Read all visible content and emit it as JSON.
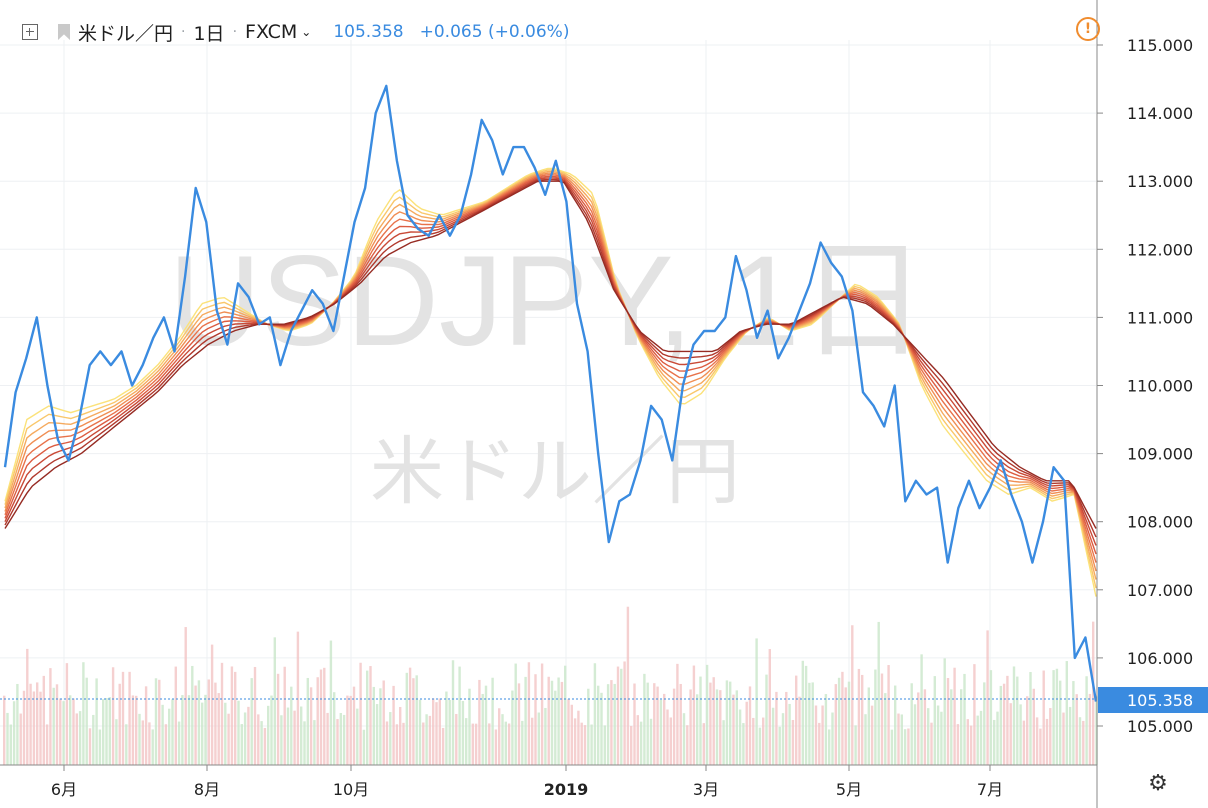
{
  "header": {
    "symbol": "米ドル／円",
    "interval": "1日",
    "source": "FXCM",
    "price": "105.358",
    "change": "+0.065 (+0.06%)"
  },
  "watermark": {
    "line1": "USDJPY, 1日",
    "line2": "米ドル／円"
  },
  "icons": {
    "expand": "expand-icon",
    "symbol_flag": "flag-icon",
    "dropdown": "chevron-down-icon",
    "alert": "alert-icon",
    "settings": "gear-icon"
  },
  "alert_symbol": "!",
  "colors": {
    "price_line": "#3a8be0",
    "ribbon": [
      "#fbe27a",
      "#f9c76a",
      "#f5aa5e",
      "#f08e53",
      "#e8724a",
      "#dc5c41",
      "#c94a37",
      "#b1392d",
      "#962b23"
    ],
    "volume_up": "#c9e6c9",
    "volume_down": "#f2c4c4",
    "current_price_tag": "#3a8be0"
  },
  "chart_data": {
    "type": "line",
    "title": "USDJPY, 1日",
    "x_ticks": [
      "6月",
      "8月",
      "10月",
      "2019",
      "3月",
      "5月",
      "7月"
    ],
    "y_ticks": [
      "115.000",
      "114.000",
      "113.000",
      "112.000",
      "111.000",
      "110.000",
      "109.000",
      "108.000",
      "107.000",
      "106.000",
      "105.000"
    ],
    "ylim": [
      104.6,
      115.35
    ],
    "current_price_label": "105.358",
    "series": [
      {
        "values": [
          108.8,
          109.9,
          110.4,
          111.0,
          110.0,
          109.2,
          108.9,
          109.5,
          110.3,
          110.5,
          110.3,
          110.5,
          110.0,
          110.3,
          110.7,
          111.0,
          110.5,
          111.6,
          112.9,
          112.4,
          111.1,
          110.6,
          111.5,
          111.3,
          110.9,
          111.0,
          110.3,
          110.8,
          111.1,
          111.4,
          111.2,
          110.8,
          111.6,
          112.4,
          112.9,
          114.0,
          114.4,
          113.3,
          112.5,
          112.3,
          112.2,
          112.5,
          112.2,
          112.5,
          113.1,
          113.9,
          113.6,
          113.1,
          113.5,
          113.5,
          113.2,
          112.8,
          113.3,
          112.7,
          111.2,
          110.5,
          109.0,
          107.7,
          108.3,
          108.4,
          108.9,
          109.7,
          109.5,
          108.9,
          110.0,
          110.6,
          110.8,
          110.8,
          111.0,
          111.9,
          111.4,
          110.7,
          111.1,
          110.4,
          110.7,
          111.1,
          111.5,
          112.1,
          111.8,
          111.6,
          111.1,
          109.9,
          109.7,
          109.4,
          110.0,
          108.3,
          108.6,
          108.4,
          108.5,
          107.4,
          108.2,
          108.6,
          108.2,
          108.5,
          108.9,
          108.4,
          108.0,
          107.4,
          108.0,
          108.8,
          108.6,
          106.0,
          106.3,
          105.358
        ],
        "color": "#3a8be0"
      },
      {
        "values": [
          108.3,
          109.5,
          109.7,
          109.6,
          109.7,
          109.8,
          110.0,
          110.3,
          110.7,
          111.2,
          111.3,
          111.1,
          110.9,
          110.8,
          110.9,
          111.2,
          111.6,
          112.4,
          112.9,
          112.6,
          112.5,
          112.6,
          112.7,
          112.9,
          113.1,
          113.2,
          113.1,
          112.8,
          111.5,
          110.7,
          110.1,
          109.7,
          109.9,
          110.4,
          110.8,
          111.0,
          110.8,
          110.9,
          111.2,
          111.5,
          111.3,
          110.9,
          110.0,
          109.4,
          109.0,
          108.6,
          108.4,
          108.5,
          108.3,
          108.4,
          106.9
        ],
        "color": "#fbe27a"
      },
      {
        "values": [
          107.9,
          108.5,
          108.8,
          109.0,
          109.3,
          109.6,
          109.9,
          110.3,
          110.6,
          110.8,
          110.9,
          110.9,
          111.0,
          111.2,
          111.5,
          111.9,
          112.1,
          112.2,
          112.4,
          112.6,
          112.8,
          113.0,
          113.0,
          112.4,
          111.4,
          110.8,
          110.5,
          110.5,
          110.5,
          110.8,
          110.9,
          110.9,
          111.1,
          111.3,
          111.2,
          110.9,
          110.5,
          110.1,
          109.6,
          109.1,
          108.8,
          108.6,
          108.6,
          107.9
        ],
        "color": "#962b23"
      }
    ]
  }
}
